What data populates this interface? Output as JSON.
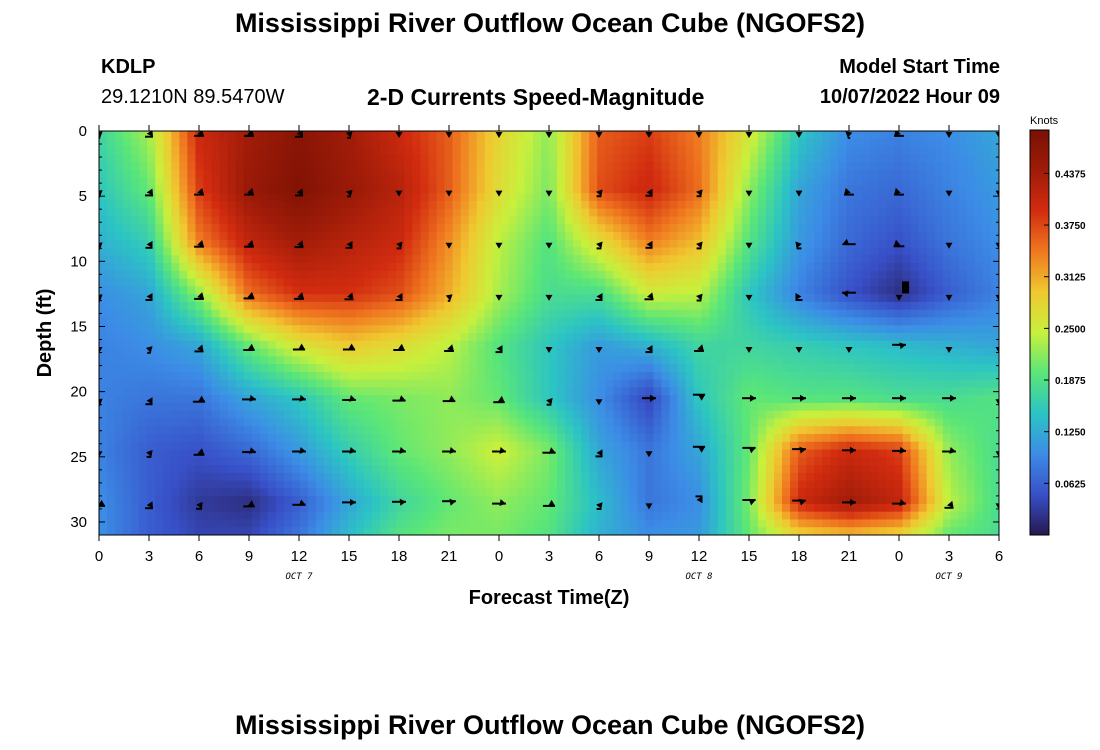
{
  "header": {
    "title": "Mississippi River Outflow Ocean Cube (NGOFS2)",
    "station": "KDLP",
    "coords": "29.1210N  89.5470W",
    "subtitle": "2-D Currents Speed-Magnitude",
    "model_label": "Model Start Time",
    "model_time": "10/07/2022 Hour 09"
  },
  "footer": {
    "title": "Mississippi River Outflow Ocean Cube (NGOFS2)"
  },
  "chart_data": {
    "type": "heatmap",
    "xlabel": "Forecast Time(Z)",
    "ylabel": "Depth (ft)",
    "x_ticks": [
      "0",
      "3",
      "6",
      "9",
      "12",
      "15",
      "18",
      "21",
      "0",
      "3",
      "6",
      "9",
      "12",
      "15",
      "18",
      "21",
      "0",
      "3",
      "6"
    ],
    "day_labels": [
      {
        "label": "OCT 7",
        "tick_index": 4
      },
      {
        "label": "OCT 8",
        "tick_index": 12
      },
      {
        "label": "OCT 9",
        "tick_index": 17
      }
    ],
    "xlim": [
      0,
      54
    ],
    "y_ticks": [
      0,
      5,
      10,
      15,
      20,
      25,
      30
    ],
    "ylim": [
      0,
      31
    ],
    "y_inverted": true,
    "colorbar": {
      "units": "Knots",
      "range": [
        0.0,
        0.49
      ],
      "ticks": [
        "0.4375",
        "0.3750",
        "0.3125",
        "0.2500",
        "0.1875",
        "0.1250",
        "0.0625"
      ],
      "tick_values": [
        0.4375,
        0.375,
        0.3125,
        0.25,
        0.1875,
        0.125,
        0.0625
      ],
      "colormap": [
        "#26184f",
        "#3850c8",
        "#3c8ce6",
        "#2cc4c4",
        "#5ae678",
        "#c8f03c",
        "#f0c830",
        "#f07820",
        "#d22c10",
        "#a01c08",
        "#7a1004"
      ]
    },
    "speed_grid": {
      "times": [
        0,
        3,
        6,
        9,
        12,
        15,
        18,
        21,
        24,
        27,
        30,
        33,
        36,
        39,
        42,
        45,
        48,
        51,
        54
      ],
      "depths": [
        0,
        4.5,
        8.5,
        12.5,
        16.5,
        20.5,
        24.5,
        28.5,
        31
      ],
      "values": [
        [
          0.17,
          0.23,
          0.4,
          0.44,
          0.47,
          0.44,
          0.4,
          0.36,
          0.28,
          0.22,
          0.36,
          0.38,
          0.34,
          0.26,
          0.15,
          0.1,
          0.09,
          0.1,
          0.12
        ],
        [
          0.15,
          0.2,
          0.38,
          0.45,
          0.48,
          0.45,
          0.42,
          0.36,
          0.27,
          0.21,
          0.37,
          0.4,
          0.35,
          0.22,
          0.12,
          0.08,
          0.07,
          0.09,
          0.11
        ],
        [
          0.13,
          0.16,
          0.34,
          0.41,
          0.44,
          0.42,
          0.4,
          0.33,
          0.24,
          0.19,
          0.27,
          0.34,
          0.3,
          0.19,
          0.11,
          0.07,
          0.05,
          0.08,
          0.1
        ],
        [
          0.1,
          0.12,
          0.22,
          0.35,
          0.39,
          0.39,
          0.37,
          0.31,
          0.23,
          0.18,
          0.18,
          0.25,
          0.24,
          0.15,
          0.09,
          0.05,
          0.02,
          0.06,
          0.09
        ],
        [
          0.09,
          0.1,
          0.12,
          0.2,
          0.26,
          0.29,
          0.27,
          0.24,
          0.19,
          0.15,
          0.11,
          0.13,
          0.17,
          0.17,
          0.16,
          0.15,
          0.14,
          0.13,
          0.12
        ],
        [
          0.09,
          0.08,
          0.08,
          0.12,
          0.15,
          0.2,
          0.21,
          0.22,
          0.2,
          0.15,
          0.1,
          0.04,
          0.15,
          0.2,
          0.19,
          0.19,
          0.18,
          0.18,
          0.19
        ],
        [
          0.09,
          0.06,
          0.05,
          0.07,
          0.11,
          0.16,
          0.2,
          0.22,
          0.25,
          0.21,
          0.12,
          0.08,
          0.12,
          0.2,
          0.36,
          0.4,
          0.38,
          0.22,
          0.18
        ],
        [
          0.1,
          0.06,
          0.03,
          0.02,
          0.06,
          0.12,
          0.17,
          0.2,
          0.22,
          0.2,
          0.14,
          0.08,
          0.1,
          0.21,
          0.4,
          0.44,
          0.41,
          0.24,
          0.18
        ],
        [
          0.1,
          0.06,
          0.04,
          0.04,
          0.08,
          0.14,
          0.19,
          0.21,
          0.21,
          0.19,
          0.13,
          0.1,
          0.11,
          0.2,
          0.28,
          0.3,
          0.28,
          0.2,
          0.18
        ]
      ]
    },
    "vectors": {
      "times": [
        0,
        3,
        6,
        9,
        12,
        15,
        18,
        21,
        24,
        27,
        30,
        33,
        36,
        39,
        42,
        45,
        48,
        51,
        54
      ],
      "depths": [
        0,
        4.5,
        8.5,
        12.5,
        16.5,
        20.5,
        24.5,
        28.5
      ],
      "directions_deg": [
        [
          170,
          145,
          135,
          135,
          145,
          165,
          180,
          180,
          180,
          180,
          180,
          180,
          180,
          180,
          180,
          190,
          225,
          180,
          180
        ],
        [
          170,
          145,
          135,
          135,
          145,
          165,
          180,
          180,
          180,
          180,
          160,
          150,
          160,
          180,
          180,
          225,
          225,
          180,
          180
        ],
        [
          170,
          150,
          135,
          135,
          140,
          150,
          160,
          180,
          180,
          180,
          160,
          150,
          160,
          180,
          200,
          250,
          230,
          180,
          180
        ],
        [
          170,
          150,
          135,
          130,
          135,
          140,
          150,
          170,
          180,
          180,
          150,
          140,
          160,
          180,
          210,
          280,
          180,
          180,
          180
        ],
        [
          180,
          165,
          140,
          125,
          120,
          120,
          125,
          135,
          150,
          180,
          180,
          150,
          135,
          180,
          180,
          180,
          80,
          180,
          180
        ],
        [
          170,
          150,
          120,
          100,
          100,
          105,
          110,
          115,
          125,
          160,
          180,
          90,
          60,
          90,
          90,
          90,
          90,
          90,
          180
        ],
        [
          180,
          160,
          130,
          105,
          100,
          100,
          100,
          100,
          100,
          110,
          150,
          180,
          60,
          70,
          80,
          90,
          95,
          100,
          180
        ],
        [
          120,
          145,
          155,
          125,
          110,
          90,
          85,
          80,
          100,
          120,
          160,
          180,
          30,
          70,
          75,
          90,
          100,
          140,
          180
        ]
      ],
      "note_marker": {
        "time": 48,
        "depth": 12
      }
    }
  }
}
